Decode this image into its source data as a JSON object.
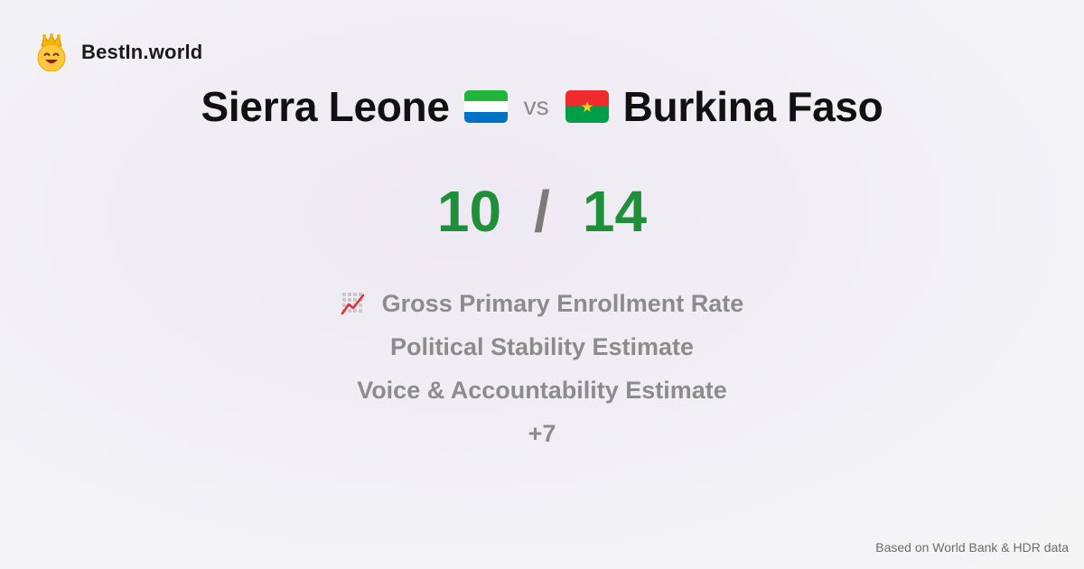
{
  "brand": {
    "name": "BestIn.world",
    "logo_icon": "crowned-smiley-icon"
  },
  "comparison": {
    "left_country": "Sierra Leone",
    "left_flag": "sierra-leone-flag-icon",
    "vs_label": "vs",
    "right_country": "Burkina Faso",
    "right_flag": "burkina-faso-flag-icon"
  },
  "scores": {
    "left": "10",
    "separator": "/",
    "right": "14",
    "color": "#1f8f3a"
  },
  "metrics": [
    {
      "icon": "chart-increasing-icon",
      "label": "Gross Primary Enrollment Rate"
    },
    {
      "label": "Political Stability Estimate"
    },
    {
      "label": "Voice & Accountability Estimate"
    },
    {
      "label": "+7"
    }
  ],
  "footer": {
    "source_note": "Based on World Bank & HDR data"
  },
  "colors": {
    "sierra_leone": [
      "#1eb53a",
      "#ffffff",
      "#0072c6"
    ],
    "burkina_faso": [
      "#ef2b2d",
      "#009e49",
      "#fcd116"
    ]
  }
}
